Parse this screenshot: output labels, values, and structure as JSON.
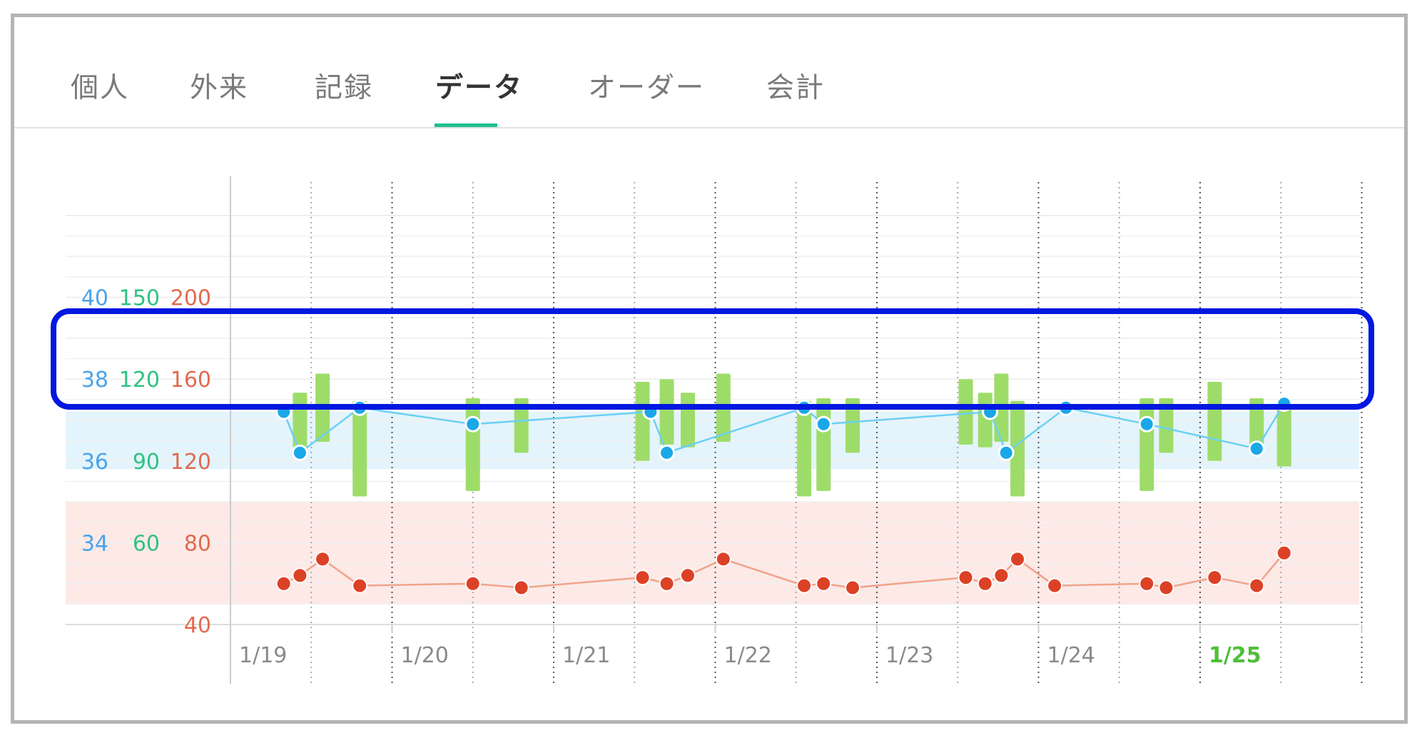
{
  "tabs": [
    {
      "label": "個人",
      "active": false
    },
    {
      "label": "外来",
      "active": false
    },
    {
      "label": "記録",
      "active": false
    },
    {
      "label": "データ",
      "active": true
    },
    {
      "label": "オーダー",
      "active": false
    },
    {
      "label": "会計",
      "active": false
    }
  ],
  "colors": {
    "temperature": "#1aa7e8",
    "temperature_line": "#6cd0f2",
    "pulse": "#dc4126",
    "pulse_line": "#f1a38a",
    "blood_pressure": "#9edc6a",
    "temp_axis": "#4aa3ea",
    "bp_axis": "#2fc283",
    "pulse_axis": "#e26a4f",
    "today": "#4fbf3a",
    "highlight_border": "#0018e0",
    "normal_temp_band": "#e3f4fc",
    "normal_pulse_band": "#fde9e6",
    "tab_accent": "#1fbf8f"
  },
  "chart_data": {
    "type": "line",
    "x_dates": [
      "1/19",
      "1/20",
      "1/21",
      "1/22",
      "1/23",
      "1/24",
      "1/25"
    ],
    "today": "1/25",
    "axes": {
      "temperature": {
        "ticks": [
          40,
          38,
          36,
          34
        ],
        "range": [
          32,
          42
        ]
      },
      "blood_pressure": {
        "ticks": [
          150,
          120,
          90,
          60
        ],
        "range": [
          30,
          180
        ]
      },
      "pulse": {
        "ticks": [
          200,
          160,
          120,
          80,
          40
        ],
        "range": [
          40,
          240
        ]
      }
    },
    "normal_ranges": {
      "temperature": [
        35.8,
        37.2
      ],
      "pulse": [
        50,
        100
      ]
    },
    "series": [
      {
        "key": "temperature",
        "x": [
          19.33,
          19.43,
          19.8,
          20.5,
          21.6,
          21.7,
          22.55,
          22.67,
          23.7,
          23.8,
          24.17,
          24.67,
          25.35,
          25.52
        ],
        "values": [
          37.2,
          36.2,
          37.3,
          36.9,
          37.2,
          36.2,
          37.3,
          36.9,
          37.2,
          36.2,
          37.3,
          36.9,
          36.3,
          37.4
        ]
      },
      {
        "key": "pulse",
        "x": [
          19.33,
          19.43,
          19.57,
          19.8,
          20.5,
          20.8,
          21.55,
          21.7,
          21.83,
          22.05,
          22.55,
          22.67,
          22.85,
          23.55,
          23.67,
          23.77,
          23.87,
          24.1,
          24.67,
          24.79,
          25.09,
          25.35,
          25.52
        ],
        "values": [
          60,
          64,
          72,
          59,
          60,
          58,
          63,
          60,
          64,
          72,
          59,
          60,
          58,
          63,
          60,
          64,
          72,
          59,
          60,
          58,
          63,
          59,
          75
        ]
      },
      {
        "key": "blood_pressure",
        "x": [
          19.43,
          19.57,
          19.8,
          20.5,
          20.8,
          21.55,
          21.7,
          21.83,
          22.05,
          22.55,
          22.67,
          22.85,
          23.55,
          23.67,
          23.77,
          23.87,
          24.67,
          24.79,
          25.09,
          25.35,
          25.52
        ],
        "high": [
          115,
          122,
          112,
          113,
          113,
          119,
          120,
          115,
          122,
          112,
          113,
          113,
          120,
          115,
          122,
          112,
          113,
          113,
          119,
          113,
          112
        ],
        "low": [
          95,
          97,
          77,
          79,
          93,
          90,
          96,
          95,
          97,
          77,
          79,
          93,
          96,
          95,
          97,
          77,
          79,
          93,
          90,
          95,
          88
        ]
      }
    ]
  }
}
